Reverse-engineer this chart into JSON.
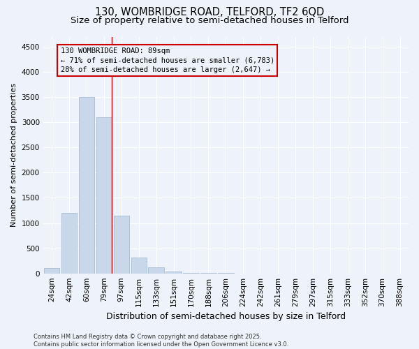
{
  "title1": "130, WOMBRIDGE ROAD, TELFORD, TF2 6QD",
  "title2": "Size of property relative to semi-detached houses in Telford",
  "xlabel": "Distribution of semi-detached houses by size in Telford",
  "ylabel": "Number of semi-detached properties",
  "categories": [
    "24sqm",
    "42sqm",
    "60sqm",
    "79sqm",
    "97sqm",
    "115sqm",
    "133sqm",
    "151sqm",
    "170sqm",
    "188sqm",
    "206sqm",
    "224sqm",
    "242sqm",
    "261sqm",
    "279sqm",
    "297sqm",
    "315sqm",
    "333sqm",
    "352sqm",
    "370sqm",
    "388sqm"
  ],
  "values": [
    110,
    1200,
    3500,
    3100,
    1150,
    310,
    120,
    40,
    10,
    5,
    3,
    0,
    0,
    0,
    0,
    0,
    0,
    0,
    0,
    0,
    0
  ],
  "bar_color": "#c8d8ea",
  "bar_edgecolor": "#9ab4cc",
  "property_line_color": "#cc0000",
  "annotation_line1": "130 WOMBRIDGE ROAD: 89sqm",
  "annotation_line2": "← 71% of semi-detached houses are smaller (6,783)",
  "annotation_line3": "28% of semi-detached houses are larger (2,647) →",
  "annotation_box_color": "#cc0000",
  "ylim_max": 4700,
  "yticks": [
    0,
    500,
    1000,
    1500,
    2000,
    2500,
    3000,
    3500,
    4000,
    4500
  ],
  "background_color": "#eef2fa",
  "grid_color": "#ffffff",
  "footer": "Contains HM Land Registry data © Crown copyright and database right 2025.\nContains public sector information licensed under the Open Government Licence v3.0.",
  "title_fontsize": 10.5,
  "subtitle_fontsize": 9.5,
  "ylabel_fontsize": 8,
  "xlabel_fontsize": 9,
  "tick_fontsize": 7.5,
  "annotation_fontsize": 7.5,
  "footer_fontsize": 6
}
